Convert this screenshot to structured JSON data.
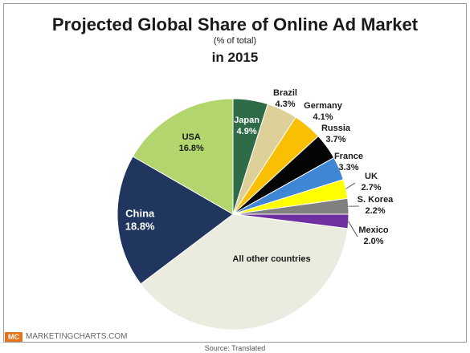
{
  "chart_data": {
    "type": "pie",
    "title": "Projected Global Share of Online Ad Market",
    "subtitle": "(% of total)",
    "subtitle2": "in 2015",
    "slices": [
      {
        "label": "Japan",
        "value_label": "4.9%",
        "value": 4.9,
        "color": "#2e6b47"
      },
      {
        "label": "Brazil",
        "value_label": "4.3%",
        "value": 4.3,
        "color": "#ddd098"
      },
      {
        "label": "Germany",
        "value_label": "4.1%",
        "value": 4.1,
        "color": "#f9bf00"
      },
      {
        "label": "Russia",
        "value_label": "3.7%",
        "value": 3.7,
        "color": "#050505"
      },
      {
        "label": "France",
        "value_label": "3.3%",
        "value": 3.3,
        "color": "#3f86d5"
      },
      {
        "label": "UK",
        "value_label": "2.7%",
        "value": 2.7,
        "color": "#ffff00"
      },
      {
        "label": "S. Korea",
        "value_label": "2.2%",
        "value": 2.2,
        "color": "#808080"
      },
      {
        "label": "Mexico",
        "value_label": "2.0%",
        "value": 2.0,
        "color": "#7030a0"
      },
      {
        "label": "All other countries",
        "value_label": "",
        "value": 38.0,
        "color": "#ecebe0"
      },
      {
        "label": "China",
        "value_label": "18.8%",
        "value": 18.8,
        "color": "#20365f"
      },
      {
        "label": "USA",
        "value_label": "16.8%",
        "value": 16.8,
        "color": "#b3d56e"
      }
    ]
  },
  "footer": {
    "logo": "MC",
    "brand": "MARKETINGCHARTS.COM",
    "source": "Source: Translated"
  }
}
